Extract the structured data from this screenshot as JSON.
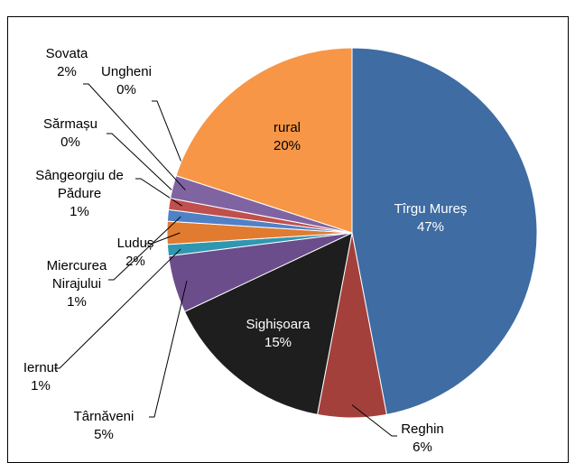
{
  "chart_data": {
    "type": "pie",
    "categories": [
      "Tîrgu Mureș",
      "Reghin",
      "Sighișoara",
      "Târnăveni",
      "Iernut",
      "Luduș",
      "Miercurea Nirajului",
      "Sângeorgiu de Pădure",
      "Sărmașu",
      "Sovata",
      "Ungheni",
      "rural"
    ],
    "values": [
      47,
      6,
      15,
      5,
      1,
      2,
      1,
      1,
      0,
      2,
      0,
      20
    ],
    "value_labels": [
      "47%",
      "6%",
      "15%",
      "5%",
      "1%",
      "2%",
      "1%",
      "1%",
      "0%",
      "2%",
      "0%",
      "20%"
    ],
    "colors": [
      "#3e6ca3",
      "#a3403c",
      "#1e1e1e",
      "#6b4d8b",
      "#2f97b1",
      "#e07b30",
      "#4f81c7",
      "#c0504d",
      "#9bbb59",
      "#8064a2",
      "#4bacc6",
      "#f79646"
    ]
  }
}
